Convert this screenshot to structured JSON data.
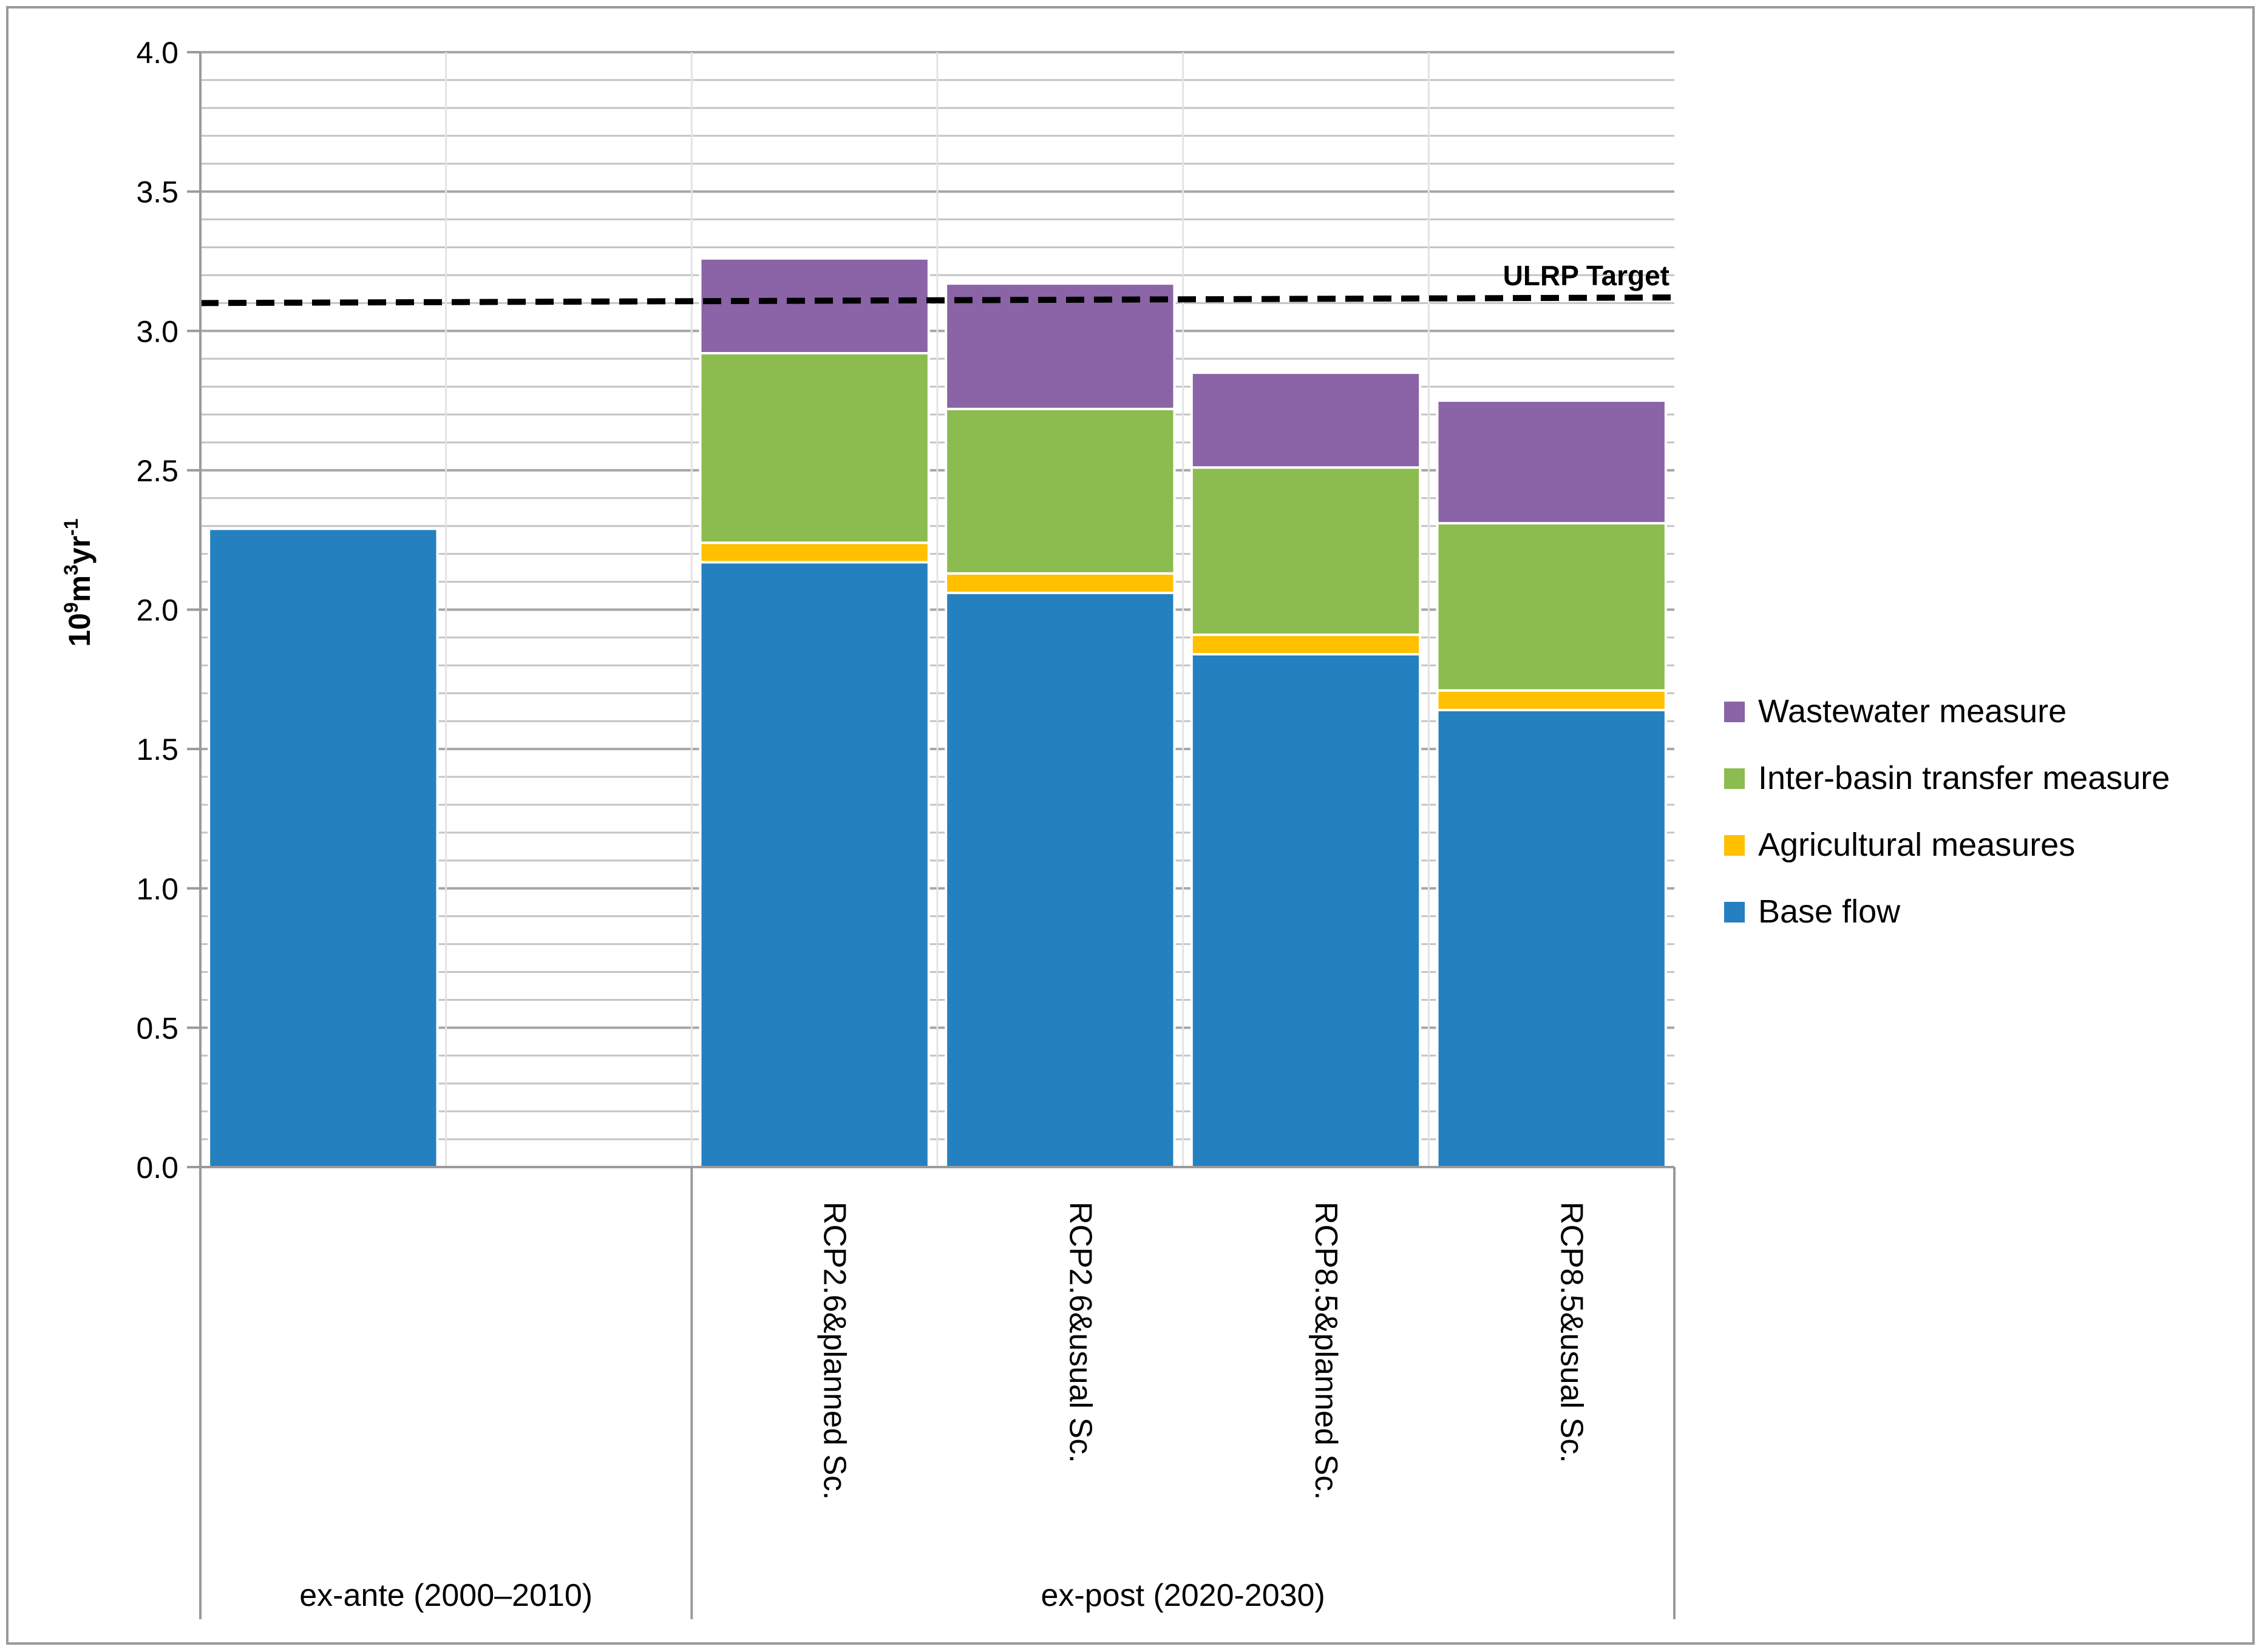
{
  "chart_data": {
    "type": "bar",
    "stacked": true,
    "title": "",
    "ylabel": "10⁹m³yr⁻¹",
    "ylabel_parts": {
      "base": "10",
      "exp1": "9",
      "mid1": "m",
      "exp2": "3",
      "mid2": "yr",
      "exp3": "-1"
    },
    "ylim": [
      0,
      4.0
    ],
    "yticks": [
      "0.0",
      "0.5",
      "1.0",
      "1.5",
      "2.0",
      "2.5",
      "3.0",
      "3.5",
      "4.0"
    ],
    "ytick_values": [
      0,
      0.5,
      1.0,
      1.5,
      2.0,
      2.5,
      3.0,
      3.5,
      4.0
    ],
    "minor_grid_step": 0.1,
    "categories": [
      "",
      "",
      "RCP2.6&planned Sc.",
      "RCP2.6&usual Sc.",
      "RCP8.5&planned Sc.",
      "RCP8.5&usual Sc."
    ],
    "groups": [
      {
        "label": "ex-ante (2000–2010)",
        "span": [
          0,
          1
        ]
      },
      {
        "label": "ex-post (2020-2030)",
        "span": [
          2,
          5
        ]
      }
    ],
    "series": [
      {
        "name": "Base flow",
        "color": "#2580C0",
        "values": [
          2.29,
          null,
          2.17,
          2.06,
          1.84,
          1.64
        ]
      },
      {
        "name": "Agricultural measures",
        "color": "#FFC000",
        "values": [
          0,
          null,
          0.07,
          0.07,
          0.07,
          0.07
        ]
      },
      {
        "name": "Inter-basin transfer measure",
        "color": "#8CBB50",
        "values": [
          0,
          null,
          0.68,
          0.59,
          0.6,
          0.6
        ]
      },
      {
        "name": "Wastewater measure",
        "color": "#8A64A6",
        "values": [
          0,
          null,
          0.34,
          0.45,
          0.34,
          0.44
        ]
      }
    ],
    "legend_order": [
      "Wastewater measure",
      "Inter-basin transfer measure",
      "Agricultural measures",
      "Base flow"
    ],
    "legend_position": "right",
    "target_line": {
      "label": "ULRP Target",
      "y_start": 3.1,
      "y_end": 3.12,
      "style": "dashed",
      "color": "#000000"
    }
  }
}
